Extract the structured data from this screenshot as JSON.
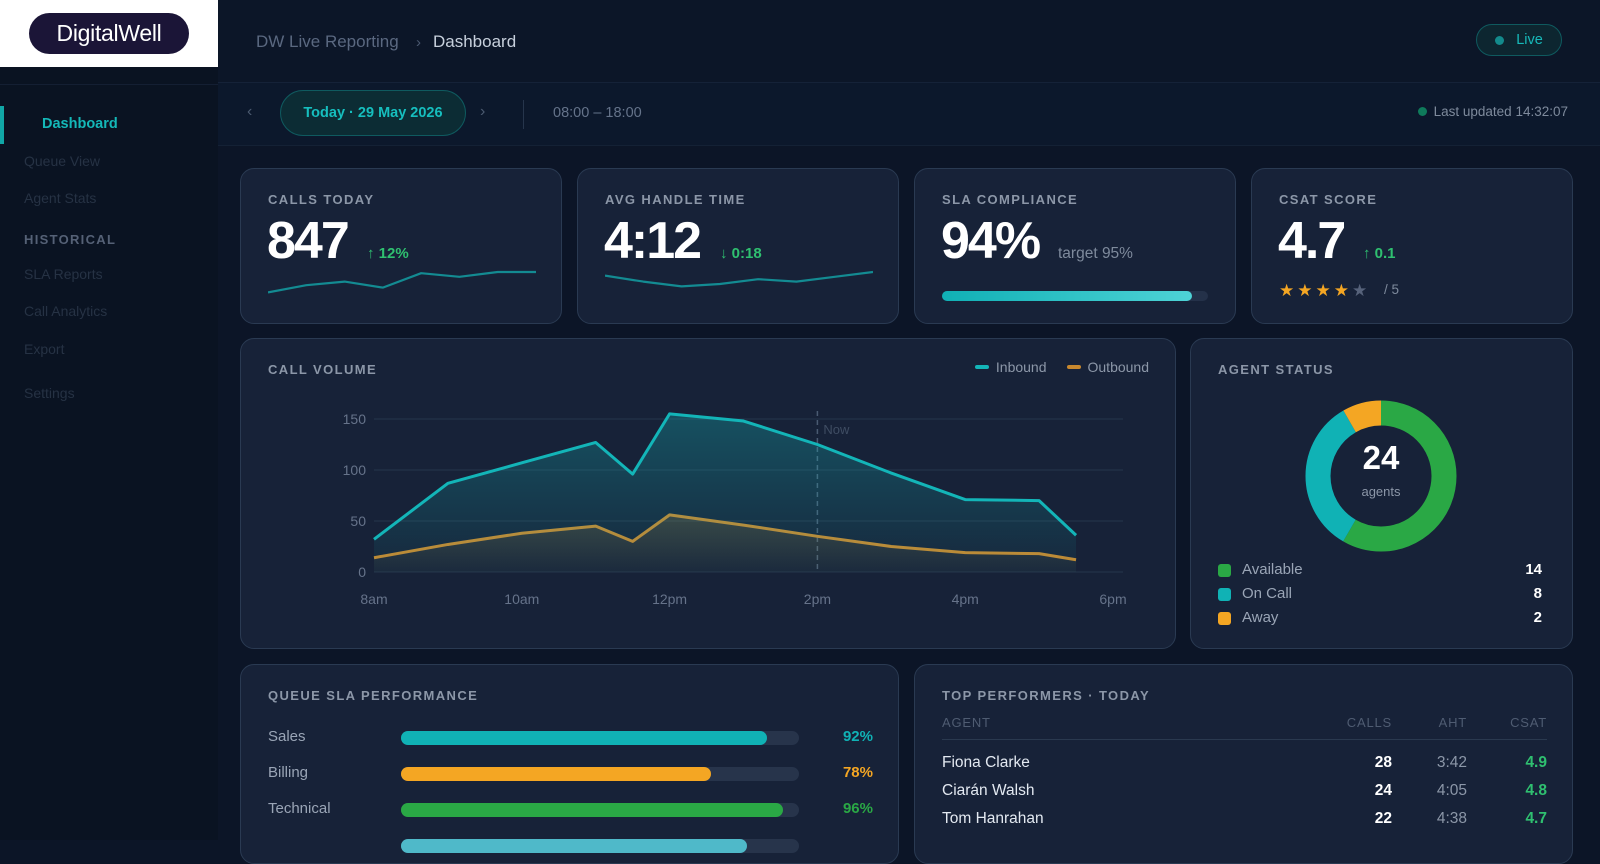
{
  "brand": {
    "logo_text": "DigitalWell"
  },
  "sidebar": {
    "items": [
      {
        "label": "Dashboard",
        "active": true
      },
      {
        "label": "Queue View"
      },
      {
        "label": "Agent Stats"
      },
      {
        "label": "SLA Reports",
        "group": "HISTORICAL"
      },
      {
        "label": "Call Analytics",
        "group": "HISTORICAL"
      },
      {
        "label": "Export",
        "group": "HISTORICAL"
      },
      {
        "label": "Settings"
      }
    ],
    "group_heading": "HISTORICAL"
  },
  "header": {
    "breadcrumb_root": "DW Live Reporting",
    "breadcrumb_sep": "›",
    "breadcrumb_current": "Dashboard",
    "live_label": "Live"
  },
  "datebar": {
    "prev_icon": "‹",
    "next_icon": "›",
    "date_label": "Today · 29 May 2026",
    "hours": "08:00 – 18:00",
    "last_updated": "Last updated 14:32:07"
  },
  "kpis": {
    "calls": {
      "title": "CALLS TODAY",
      "value": "847",
      "delta": "↑ 12%",
      "spark": [
        0.15,
        0.45,
        0.6,
        0.35,
        0.95,
        0.8,
        1.0,
        1.0
      ]
    },
    "aht": {
      "title": "AVG HANDLE TIME",
      "value": "4:12",
      "delta": "↓ 0:18",
      "spark": [
        0.85,
        0.6,
        0.4,
        0.5,
        0.7,
        0.6,
        0.8,
        1.0
      ]
    },
    "sla": {
      "title": "SLA COMPLIANCE",
      "value": "94%",
      "target": "target 95%",
      "progress_pct": 94
    },
    "csat": {
      "title": "CSAT SCORE",
      "value": "4.7",
      "delta": "↑ 0.1",
      "stars": 4,
      "stars_max": 5,
      "of_label": "/ 5"
    }
  },
  "call_volume": {
    "title": "CALL VOLUME",
    "now_label": "Now",
    "now_x": "2pm"
  },
  "chart_data": {
    "type": "area",
    "title": "CALL VOLUME",
    "x_ticks": [
      "8am",
      "10am",
      "12pm",
      "2pm",
      "4pm",
      "6pm"
    ],
    "x_hours": [
      8,
      9,
      10,
      11,
      11.5,
      12,
      13,
      14,
      15,
      16,
      17,
      17.5
    ],
    "ylim": [
      0,
      150
    ],
    "y_ticks": [
      0,
      50,
      100,
      150
    ],
    "series": [
      {
        "name": "Inbound",
        "color": "#13b5b8",
        "values": [
          32,
          87,
          107,
          127,
          96,
          155,
          148,
          125,
          97,
          71,
          70,
          36
        ]
      },
      {
        "name": "Outbound",
        "color": "#c8882e",
        "values": [
          14,
          27,
          38,
          45,
          30,
          56,
          46,
          35,
          25,
          19,
          18,
          12
        ]
      }
    ],
    "legend_position": "top-right",
    "grid": true
  },
  "agent_status": {
    "title": "AGENT STATUS",
    "total": "24",
    "total_label": "agents",
    "rows": [
      {
        "label": "Available",
        "value": "14",
        "color": "#2aa845"
      },
      {
        "label": "On Call",
        "value": "8",
        "color": "#10b2b5"
      },
      {
        "label": "Away",
        "value": "2",
        "color": "#f4a623"
      }
    ]
  },
  "queue_sla": {
    "title": "QUEUE SLA PERFORMANCE",
    "rows": [
      {
        "label": "Sales",
        "pct": "92%",
        "value": 92,
        "color": "#10b2b5"
      },
      {
        "label": "Billing",
        "pct": "78%",
        "value": 78,
        "color": "#f4a623"
      },
      {
        "label": "Technical",
        "pct": "96%",
        "value": 96,
        "color": "#2aa845"
      }
    ]
  },
  "top_performers": {
    "title": "TOP PERFORMERS · TODAY",
    "headers": {
      "agent": "AGENT",
      "calls": "CALLS",
      "aht": "AHT",
      "csat": "CSAT"
    },
    "rows": [
      {
        "name": "Fiona Clarke",
        "calls": "28",
        "aht": "3:42",
        "csat": "4.9"
      },
      {
        "name": "Ciarán Walsh",
        "calls": "24",
        "aht": "4:05",
        "csat": "4.8"
      },
      {
        "name": "Tom Hanrahan",
        "calls": "22",
        "aht": "4:38",
        "csat": "4.7"
      }
    ]
  }
}
